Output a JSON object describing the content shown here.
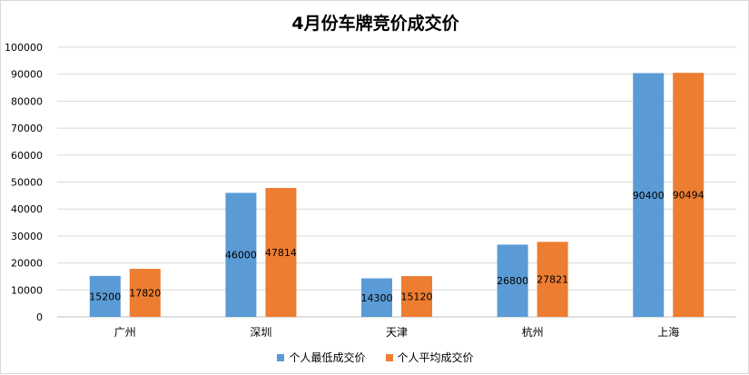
{
  "chart_data": {
    "type": "bar",
    "title": "4月份车牌竞价成交价",
    "categories": [
      "广州",
      "深圳",
      "天津",
      "杭州",
      "上海"
    ],
    "series": [
      {
        "name": "个人最低成交价",
        "color": "#5b9bd5",
        "values": [
          15200,
          46000,
          14300,
          26800,
          90400
        ]
      },
      {
        "name": "个人平均成交价",
        "color": "#ed7d31",
        "values": [
          17820,
          47814,
          15120,
          27821,
          90494
        ]
      }
    ],
    "ylim": [
      0,
      100000
    ],
    "yticks": [
      0,
      10000,
      20000,
      30000,
      40000,
      50000,
      60000,
      70000,
      80000,
      90000,
      100000
    ],
    "grid": true,
    "legend_position": "bottom"
  }
}
